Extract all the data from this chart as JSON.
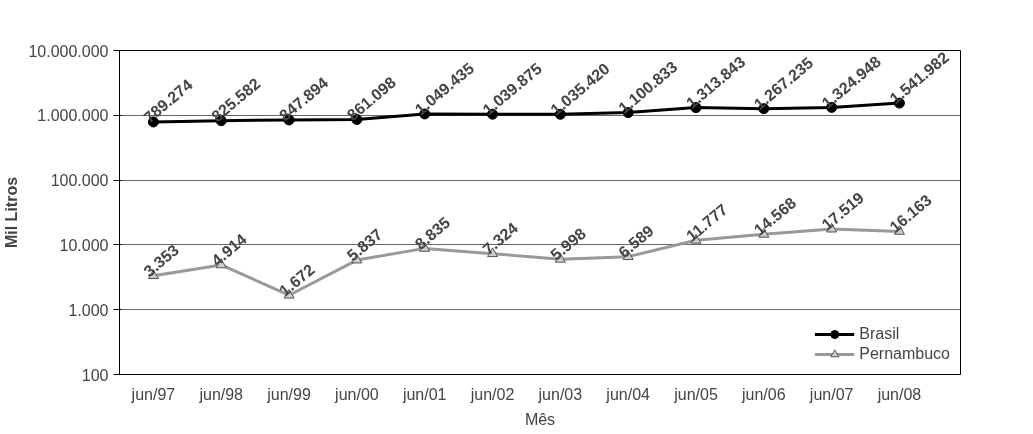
{
  "chart_data": {
    "type": "line",
    "xlabel": "Mês",
    "ylabel": "Mil Litros",
    "categories": [
      "jun/97",
      "jun/98",
      "jun/99",
      "jun/00",
      "jun/01",
      "jun/02",
      "jun/03",
      "jun/04",
      "jun/05",
      "jun/06",
      "jun/07",
      "jun/08"
    ],
    "log": "y",
    "ylim": [
      100,
      10000000
    ],
    "yticks": [
      {
        "value": 100,
        "label": "100"
      },
      {
        "value": 1000,
        "label": "1.000"
      },
      {
        "value": 10000,
        "label": "10.000"
      },
      {
        "value": 100000,
        "label": "100.000"
      },
      {
        "value": 1000000,
        "label": "1.000.000"
      },
      {
        "value": 10000000,
        "label": "10.000.000"
      }
    ],
    "grid": "y",
    "legend": "bottom right",
    "series": [
      {
        "name": "Brasil",
        "color": "#000000",
        "marker": "circle",
        "values": [
          789274,
          825582,
          847894,
          861098,
          1049435,
          1039875,
          1035420,
          1100833,
          1313843,
          1267235,
          1324948,
          1541982
        ],
        "value_labels": [
          "789.274",
          "825.582",
          "847.894",
          "861.098",
          "1.049.435",
          "1.039.875",
          "1.035.420",
          "1.100.833",
          "1.313.843",
          "1.267.235",
          "1.324.948",
          "1.541.982"
        ]
      },
      {
        "name": "Pernambuco",
        "color": "#999999",
        "marker": "triangle",
        "values": [
          3353,
          4914,
          1672,
          5837,
          8835,
          7324,
          5998,
          6589,
          11777,
          14568,
          17519,
          16163
        ],
        "value_labels": [
          "3.353",
          "4.914",
          "1.672",
          "5.837",
          "8.835",
          "7.324",
          "5.998",
          "6.589",
          "11.777",
          "14.568",
          "17.519",
          "16.163"
        ]
      }
    ]
  }
}
